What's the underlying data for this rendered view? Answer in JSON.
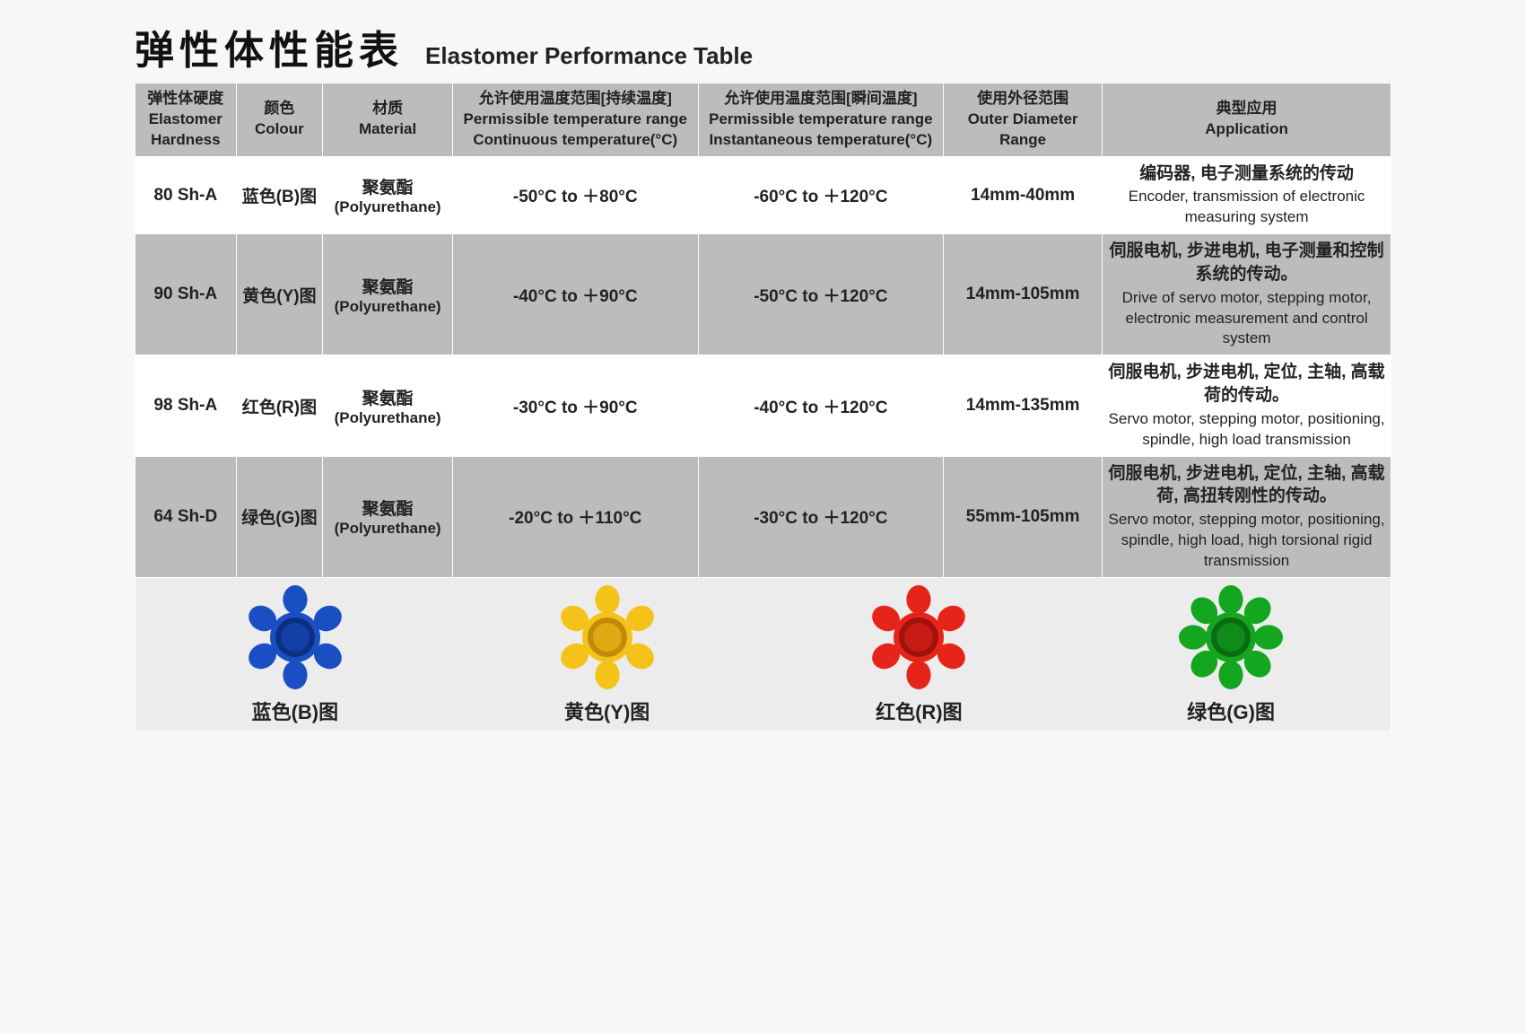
{
  "title": {
    "cn": "弹性体性能表",
    "en": "Elastomer Performance Table"
  },
  "colors": {
    "header_bg": "#bcbcbc",
    "row_odd_bg": "#ffffff",
    "row_even_bg": "#bcbcbc",
    "legend_bg": "#ececec",
    "text": "#222222",
    "border": "#ffffff",
    "spider_blue": {
      "fill": "#1a4fc4",
      "shade": "#0d2f82"
    },
    "spider_yellow": {
      "fill": "#f5c21a",
      "shade": "#c2890a"
    },
    "spider_red": {
      "fill": "#e6241a",
      "shade": "#a1120c"
    },
    "spider_green": {
      "fill": "#13a61e",
      "shade": "#0a6b13"
    }
  },
  "columns": [
    {
      "cn": "弹性体硬度",
      "en": "Elastomer Hardness"
    },
    {
      "cn": "颜色",
      "en": "Colour"
    },
    {
      "cn": "材质",
      "en": "Material"
    },
    {
      "cn": "允许使用温度范围[持续温度]",
      "en": "Permissible temperature range  Continuous temperature(°C)"
    },
    {
      "cn": "允许使用温度范围[瞬间温度]",
      "en": "Permissible temperature range Instantaneous temperature(°C)"
    },
    {
      "cn": "使用外径范围",
      "en": "Outer Diameter Range"
    },
    {
      "cn": "典型应用",
      "en": "Application"
    }
  ],
  "rows": [
    {
      "hardness": "80 Sh-A",
      "colour": "蓝色(B)图",
      "material_cn": "聚氨酯",
      "material_en": "(Polyurethane)",
      "temp_cont": "-50°C to ＋80°C",
      "temp_inst": "-60°C to ＋120°C",
      "diameter": "14mm-40mm",
      "app_cn": "编码器, 电子测量系统的传动",
      "app_en": "Encoder, transmission of electronic measuring system"
    },
    {
      "hardness": "90 Sh-A",
      "colour": "黄色(Y)图",
      "material_cn": "聚氨酯",
      "material_en": "(Polyurethane)",
      "temp_cont": "-40°C to ＋90°C",
      "temp_inst": "-50°C to ＋120°C",
      "diameter": "14mm-105mm",
      "app_cn": "伺服电机, 步进电机, 电子测量和控制系统的传动。",
      "app_en": "Drive of servo motor, stepping motor, electronic measurement and control system"
    },
    {
      "hardness": "98 Sh-A",
      "colour": "红色(R)图",
      "material_cn": "聚氨酯",
      "material_en": "(Polyurethane)",
      "temp_cont": "-30°C to ＋90°C",
      "temp_inst": "-40°C to ＋120°C",
      "diameter": "14mm-135mm",
      "app_cn": "伺服电机, 步进电机, 定位, 主轴, 高载荷的传动。",
      "app_en": "Servo motor, stepping motor, positioning, spindle, high load transmission"
    },
    {
      "hardness": "64 Sh-D",
      "colour": "绿色(G)图",
      "material_cn": "聚氨酯",
      "material_en": "(Polyurethane)",
      "temp_cont": "-20°C to ＋110°C",
      "temp_inst": "-30°C to ＋120°C",
      "diameter": "55mm-105mm",
      "app_cn": "伺服电机, 步进电机, 定位, 主轴, 高载荷, 高扭转刚性的传动。",
      "app_en": "Servo motor, stepping motor, positioning, spindle, high load, high torsional rigid transmission"
    }
  ],
  "legend": [
    {
      "label": "蓝色(B)图",
      "color_key": "spider_blue",
      "lobes": 6
    },
    {
      "label": "黄色(Y)图",
      "color_key": "spider_yellow",
      "lobes": 6
    },
    {
      "label": "红色(R)图",
      "color_key": "spider_red",
      "lobes": 6
    },
    {
      "label": "绿色(G)图",
      "color_key": "spider_green",
      "lobes": 8
    }
  ]
}
